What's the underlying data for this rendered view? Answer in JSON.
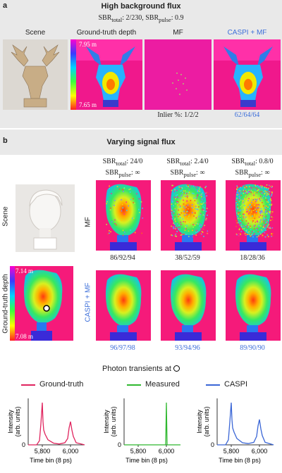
{
  "panel_a": {
    "letter": "a",
    "title": "High background flux",
    "sbr_line": "SBR_total: 2/230, SBR_pulse: 0.9",
    "col_titles": [
      "Scene",
      "Ground-truth depth",
      "MF",
      "CASPI + MF"
    ],
    "depth_max": "7.95 m",
    "depth_min": "7.65 m",
    "mf_inlier": "Inlier %: 1/2/2",
    "caspi_inlier": "62/64/64"
  },
  "panel_b": {
    "letter": "b",
    "title": "Varying signal flux",
    "columns": [
      {
        "sbr_total": "24/0",
        "sbr_pulse": "∞",
        "mf_nums": "86/92/94",
        "caspi_nums": "96/97/98"
      },
      {
        "sbr_total": "2.4/0",
        "sbr_pulse": "∞",
        "mf_nums": "38/52/59",
        "caspi_nums": "93/94/96"
      },
      {
        "sbr_total": "0.8/0",
        "sbr_pulse": "∞",
        "mf_nums": "18/28/36",
        "caspi_nums": "89/90/90"
      }
    ],
    "row_labels": {
      "scene": "Scene",
      "gt": "Ground-truth depth",
      "mf": "MF",
      "caspi": "CASPI + MF"
    },
    "depth_max": "7.14 m",
    "depth_min": "7.08 m"
  },
  "transients": {
    "title": "Photon transients at",
    "legend": [
      {
        "name": "Ground-truth",
        "color": "#e0245e"
      },
      {
        "name": "Measured",
        "color": "#2fb82f"
      },
      {
        "name": "CASPI",
        "color": "#3a66d6"
      }
    ],
    "ylabel_1": "Intensity",
    "ylabel_2": "(arb. units)",
    "xlabel": "Time bin (8 ps)",
    "zero": "0",
    "xticks": [
      "5,800",
      "6,000"
    ]
  },
  "chart_data": [
    {
      "type": "line",
      "title": "Ground-truth",
      "xlabel": "Time bin (8 ps)",
      "ylabel": "Intensity (arb. units)",
      "xlim": [
        5700,
        6100
      ],
      "xticks": [
        5800,
        6000
      ],
      "x": [
        5700,
        5760,
        5780,
        5790,
        5800,
        5805,
        5810,
        5820,
        5840,
        5880,
        5920,
        5960,
        5980,
        5990,
        6000,
        6010,
        6020,
        6040,
        6100
      ],
      "y": [
        0,
        0,
        0.1,
        0.5,
        1.0,
        0.55,
        0.35,
        0.25,
        0.12,
        0.04,
        0.02,
        0.05,
        0.15,
        0.4,
        0.55,
        0.35,
        0.2,
        0.05,
        0
      ]
    },
    {
      "type": "line",
      "title": "Measured",
      "xlabel": "Time bin (8 ps)",
      "ylabel": "Intensity (arb. units)",
      "xlim": [
        5700,
        6100
      ],
      "xticks": [
        5800,
        6000
      ],
      "x": [
        5700,
        5995,
        6000,
        6005,
        6100
      ],
      "y": [
        0,
        0,
        1.0,
        0,
        0
      ]
    },
    {
      "type": "line",
      "title": "CASPI",
      "xlabel": "Time bin (8 ps)",
      "ylabel": "Intensity (arb. units)",
      "xlim": [
        5700,
        6100
      ],
      "xticks": [
        5800,
        6000
      ],
      "x": [
        5700,
        5760,
        5780,
        5790,
        5800,
        5805,
        5810,
        5820,
        5840,
        5880,
        5920,
        5960,
        5980,
        5990,
        6000,
        6010,
        6020,
        6040,
        6100
      ],
      "y": [
        0,
        0,
        0.12,
        0.55,
        1.0,
        0.6,
        0.4,
        0.3,
        0.15,
        0.05,
        0.03,
        0.06,
        0.2,
        0.45,
        0.6,
        0.38,
        0.22,
        0.06,
        0
      ]
    }
  ]
}
